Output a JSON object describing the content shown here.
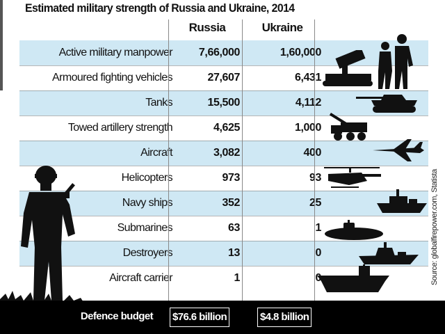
{
  "title": "Estimated military strength of Russia and Ukraine, 2014",
  "columns": {
    "russia": "Russia",
    "ukraine": "Ukraine"
  },
  "rows": [
    {
      "label": "Active military manpower",
      "russia": "7,66,000",
      "ukraine": "1,60,000"
    },
    {
      "label": "Armoured fighting vehicles",
      "russia": "27,607",
      "ukraine": "6,431"
    },
    {
      "label": "Tanks",
      "russia": "15,500",
      "ukraine": "4,112"
    },
    {
      "label": "Towed artillery strength",
      "russia": "4,625",
      "ukraine": "1,000"
    },
    {
      "label": "Aircraft",
      "russia": "3,082",
      "ukraine": "400"
    },
    {
      "label": "Helicopters",
      "russia": "973",
      "ukraine": "93"
    },
    {
      "label": "Navy ships",
      "russia": "352",
      "ukraine": "25"
    },
    {
      "label": "Submarines",
      "russia": "63",
      "ukraine": "1"
    },
    {
      "label": "Destroyers",
      "russia": "13",
      "ukraine": "0"
    },
    {
      "label": "Aircraft carrier",
      "russia": "1",
      "ukraine": "0"
    }
  ],
  "budget": {
    "label": "Defence budget",
    "russia": "$76.6 billion",
    "ukraine": "$4.8 billion"
  },
  "source": "Source: globalfirepower.com, Statista",
  "icons": [
    "soldiers-icon",
    "rocket-launcher-icon",
    "tank-icon",
    "artillery-truck-icon",
    "jet-icon",
    "helicopter-icon",
    "navy-ship-icon",
    "submarine-icon",
    "destroyer-icon",
    "aircraft-carrier-icon",
    "soldier-silhouette-icon"
  ],
  "colors": {
    "shaded_row": "#cfe8f4",
    "silhouette": "#111111",
    "budget_bar": "#000000"
  }
}
